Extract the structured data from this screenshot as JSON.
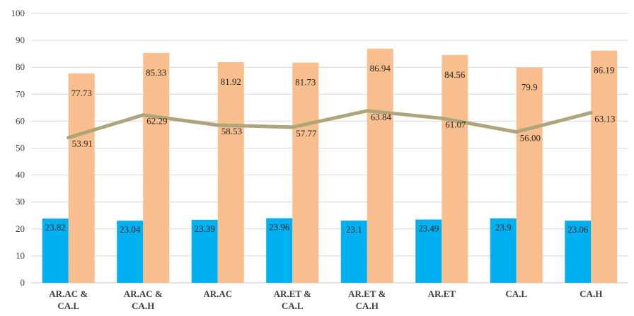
{
  "chart_data": {
    "type": "bar",
    "categories": [
      [
        "AR.AC &",
        "CA.L"
      ],
      [
        "AR.AC &",
        "CA.H"
      ],
      [
        "AR.AC"
      ],
      [
        "AR.ET &",
        "CA.L"
      ],
      [
        "AR.ET &",
        "CA.H"
      ],
      [
        "AR.ET"
      ],
      [
        "CA.L"
      ],
      [
        "CA.H"
      ]
    ],
    "series": [
      {
        "kind": "bar",
        "color": "#00B0F0",
        "values": [
          23.82,
          23.04,
          23.39,
          23.96,
          23.1,
          23.49,
          23.9,
          23.06
        ],
        "labels": [
          "23.82",
          "23.04",
          "23.39",
          "23.96",
          "23.1",
          "23.49",
          "23.9",
          "23.06"
        ]
      },
      {
        "kind": "bar",
        "color": "#F8BE8E",
        "values": [
          77.73,
          85.33,
          81.92,
          81.73,
          86.94,
          84.56,
          79.9,
          86.19
        ],
        "labels": [
          "77.73",
          "85.33",
          "81.92",
          "81.73",
          "86.94",
          "84.56",
          "79.9",
          "86.19"
        ]
      },
      {
        "kind": "line",
        "color": "#B0A57A",
        "values": [
          53.91,
          62.29,
          58.53,
          57.77,
          63.84,
          61.07,
          56.0,
          63.13
        ],
        "labels": [
          "53.91",
          "62.29",
          "58.53",
          "57.77",
          "63.84",
          "61.07",
          "56.00",
          "63.13"
        ]
      }
    ],
    "ylim": [
      0,
      100
    ],
    "yticks": [
      "0",
      "10",
      "20",
      "30",
      "40",
      "50",
      "60",
      "70",
      "80",
      "90",
      "100"
    ],
    "grid": true,
    "title": "",
    "xlabel": "",
    "ylabel": ""
  }
}
